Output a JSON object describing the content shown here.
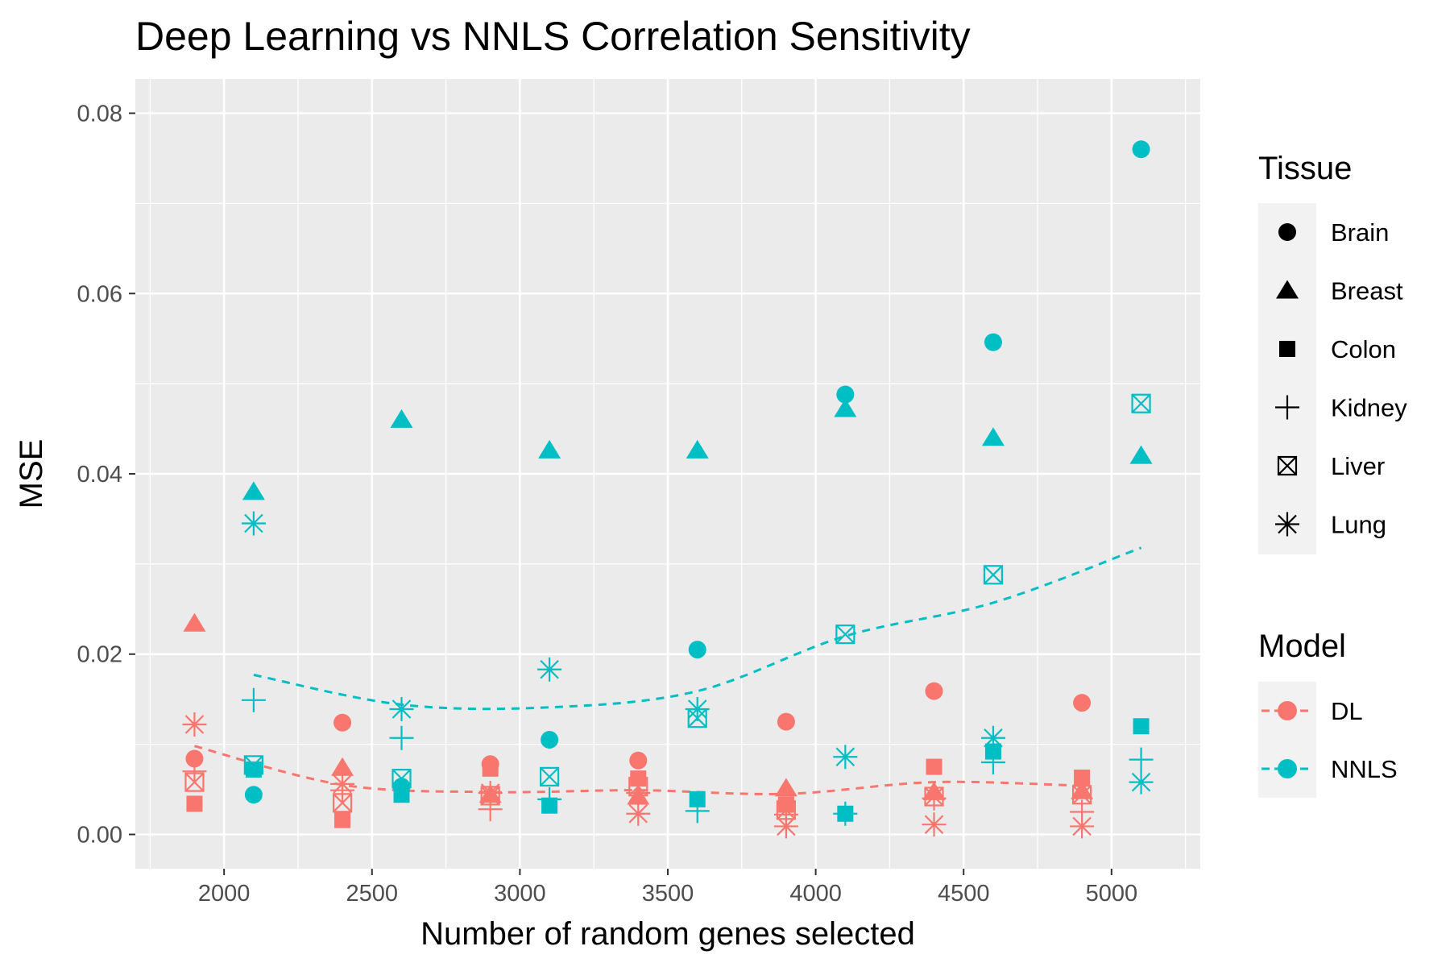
{
  "chart_data": {
    "type": "scatter",
    "title": "Deep Learning vs NNLS Correlation Sensitivity",
    "xlabel": "Number of random genes selected",
    "ylabel": "MSE",
    "xlim": [
      1700,
      5300
    ],
    "ylim": [
      -0.0038,
      0.0838
    ],
    "x_ticks": [
      2000,
      2500,
      3000,
      3500,
      4000,
      4500,
      5000
    ],
    "y_ticks": [
      0.0,
      0.02,
      0.04,
      0.06,
      0.08
    ],
    "x_tick_labels": [
      "2000",
      "2500",
      "3000",
      "3500",
      "4000",
      "4500",
      "5000"
    ],
    "y_tick_labels": [
      "0.00",
      "0.02",
      "0.04",
      "0.06",
      "0.08"
    ],
    "grid": true,
    "legend_position": "right",
    "colors": {
      "DL": "#F8766D",
      "NNLS": "#00BFC4",
      "panel": "#EBEBEB",
      "grid": "#FFFFFF"
    },
    "legend": {
      "shape_title": "Tissue",
      "shape_items": [
        {
          "label": "Brain",
          "shape": "circle"
        },
        {
          "label": "Breast",
          "shape": "triangle"
        },
        {
          "label": "Colon",
          "shape": "square"
        },
        {
          "label": "Kidney",
          "shape": "plus"
        },
        {
          "label": "Liver",
          "shape": "boxed-x"
        },
        {
          "label": "Lung",
          "shape": "asterisk"
        }
      ],
      "color_title": "Model",
      "color_items": [
        {
          "label": "DL",
          "color": "#F8766D"
        },
        {
          "label": "NNLS",
          "color": "#00BFC4"
        }
      ]
    },
    "series": [
      {
        "name": "DL",
        "color": "#F8766D",
        "x": [
          1900,
          2400,
          2900,
          3400,
          3900,
          4400,
          4900
        ],
        "points": {
          "Brain": [
            0.0084,
            0.0124,
            0.0078,
            0.0082,
            0.0125,
            0.0159,
            0.0146
          ],
          "Breast": [
            0.0234,
            0.0074,
            0.0044,
            0.0042,
            0.0051,
            0.0047,
            0.0048
          ],
          "Colon": [
            0.0034,
            0.0016,
            0.0073,
            0.0062,
            0.0033,
            0.0075,
            0.0063
          ],
          "Kidney": [
            0.007,
            0.0049,
            0.0028,
            0.0046,
            0.0022,
            0.004,
            0.0025
          ],
          "Liver": [
            0.0058,
            0.0035,
            0.0043,
            0.0053,
            0.0027,
            0.0042,
            0.0044
          ],
          "Lung": [
            0.0122,
            0.0056,
            0.0046,
            0.0023,
            0.0009,
            0.0011,
            0.0009
          ]
        },
        "trend": [
          0.0098,
          0.0055,
          0.0047,
          0.0049,
          0.0045,
          0.0058,
          0.0054
        ]
      },
      {
        "name": "NNLS",
        "color": "#00BFC4",
        "x": [
          2100,
          2600,
          3100,
          3600,
          4100,
          4600,
          5100
        ],
        "points": {
          "Brain": [
            0.0044,
            0.0053,
            0.0105,
            0.0205,
            0.0488,
            0.0546,
            0.076
          ],
          "Breast": [
            0.038,
            0.046,
            0.0426,
            0.0426,
            0.0472,
            0.044,
            0.042
          ],
          "Colon": [
            0.0072,
            0.0044,
            0.0032,
            0.0039,
            0.0023,
            0.0092,
            0.012
          ],
          "Kidney": [
            0.0149,
            0.0107,
            0.0039,
            0.0026,
            0.0023,
            0.008,
            0.0083
          ],
          "Liver": [
            0.0077,
            0.0062,
            0.0064,
            0.0129,
            0.0222,
            0.0288,
            0.0478
          ],
          "Lung": [
            0.0345,
            0.0139,
            0.0183,
            0.0139,
            0.0086,
            0.0107,
            0.0058
          ]
        },
        "trend": [
          0.0177,
          0.0144,
          0.0141,
          0.0159,
          0.022,
          0.0257,
          0.0318
        ]
      }
    ]
  }
}
